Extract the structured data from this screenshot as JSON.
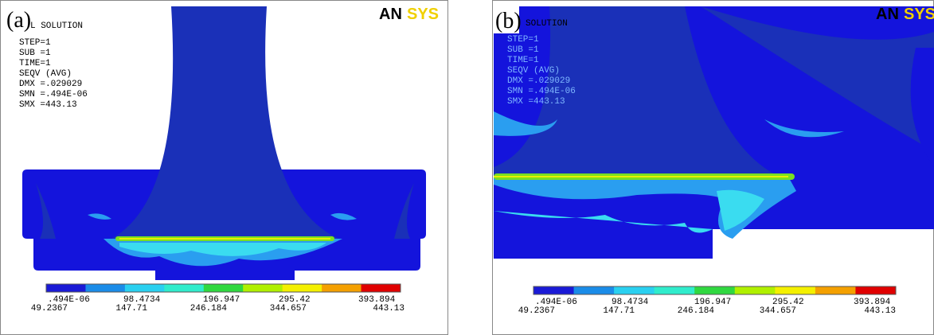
{
  "panels": [
    {
      "label": "(a)",
      "title": "L SOLUTION",
      "info": [
        "STEP=1",
        "SUB =1",
        "TIME=1",
        "SEQV     (AVG)",
        "DMX =.029029",
        "SMN =.494E-06",
        "SMX =443.13"
      ],
      "logo": {
        "an": "AN",
        "sys": "SYS"
      },
      "legend": {
        "top": [
          ".494E-06",
          "98.4734",
          "196.947",
          "295.42",
          "393.894"
        ],
        "bottom": [
          "49.2367",
          "147.71",
          "246.184",
          "344.657",
          "443.13"
        ]
      }
    },
    {
      "label": "(b)",
      "title": "SOLUTION",
      "info": [
        "STEP=1",
        "SUB =1",
        "TIME=1",
        "SEQV     (AVG)",
        "DMX =.029029",
        "SMN =.494E-06",
        "SMX =443.13"
      ],
      "logo": {
        "an": "AN",
        "sys": "SYS"
      },
      "legend": {
        "top": [
          ".494E-06",
          "98.4734",
          "196.947",
          "295.42",
          "393.894"
        ],
        "bottom": [
          "49.2367",
          "147.71",
          "246.184",
          "344.657",
          "443.13"
        ]
      }
    }
  ]
}
